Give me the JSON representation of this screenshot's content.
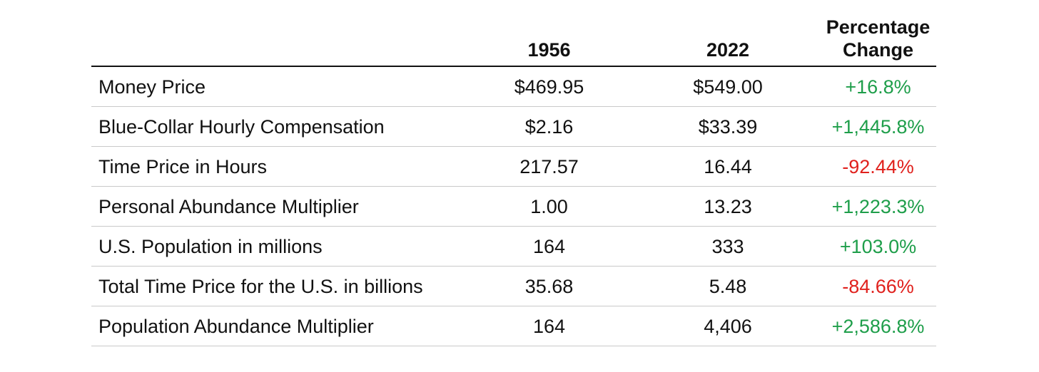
{
  "colors": {
    "positive": "#1e9e4a",
    "negative": "#e0211d",
    "text": "#111111",
    "rule": "#c9c9c9"
  },
  "chart_data": {
    "type": "table",
    "columns": [
      "",
      "1956",
      "2022",
      "Percentage Change"
    ],
    "header": {
      "col_1956": "1956",
      "col_2022": "2022",
      "pct_line1": "Percentage",
      "pct_line2": "Change"
    },
    "rows": [
      {
        "label": "Money Price",
        "v1956": "$469.95",
        "v2022": "$549.00",
        "change": "+16.8%",
        "sign": "positive"
      },
      {
        "label": "Blue-Collar Hourly Compensation",
        "v1956": "$2.16",
        "v2022": "$33.39",
        "change": "+1,445.8%",
        "sign": "positive"
      },
      {
        "label": "Time Price in Hours",
        "v1956": "217.57",
        "v2022": "16.44",
        "change": "-92.44%",
        "sign": "negative"
      },
      {
        "label": "Personal Abundance Multiplier",
        "v1956": "1.00",
        "v2022": "13.23",
        "change": "+1,223.3%",
        "sign": "positive"
      },
      {
        "label": "U.S. Population in millions",
        "v1956": "164",
        "v2022": "333",
        "change": "+103.0%",
        "sign": "positive"
      },
      {
        "label": "Total Time Price for the U.S. in billions",
        "v1956": "35.68",
        "v2022": "5.48",
        "change": "-84.66%",
        "sign": "negative"
      },
      {
        "label": "Population Abundance Multiplier",
        "v1956": "164",
        "v2022": "4,406",
        "change": "+2,586.8%",
        "sign": "positive"
      }
    ]
  }
}
